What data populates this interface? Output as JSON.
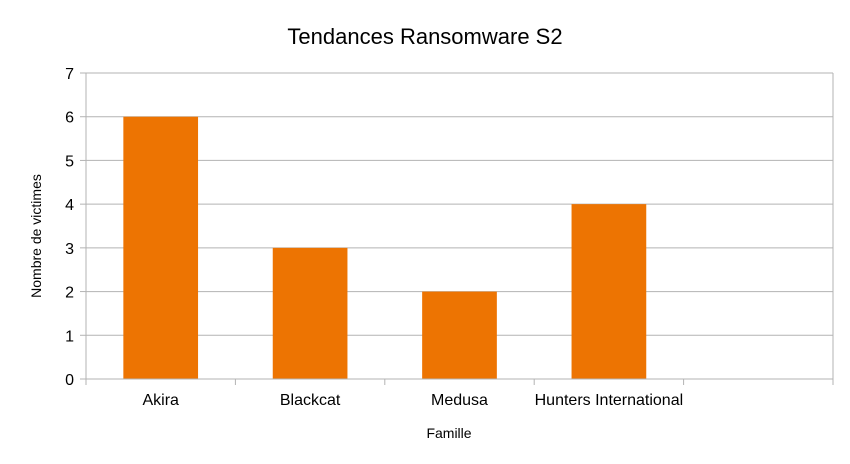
{
  "chart_data": {
    "type": "bar",
    "title": "Tendances Ransomware S2",
    "xlabel": "Famille",
    "ylabel": "Nombre de victimes",
    "categories": [
      "Akira",
      "Blackcat",
      "Medusa",
      "Hunters International",
      ""
    ],
    "values": [
      6,
      3,
      2,
      4,
      null
    ],
    "ylim": [
      0,
      7
    ],
    "yticks": [
      0,
      1,
      2,
      3,
      4,
      5,
      6,
      7
    ],
    "grid": true,
    "legend": "none",
    "bar_color": "#ED7402",
    "grid_color": "#B3B3B3"
  }
}
